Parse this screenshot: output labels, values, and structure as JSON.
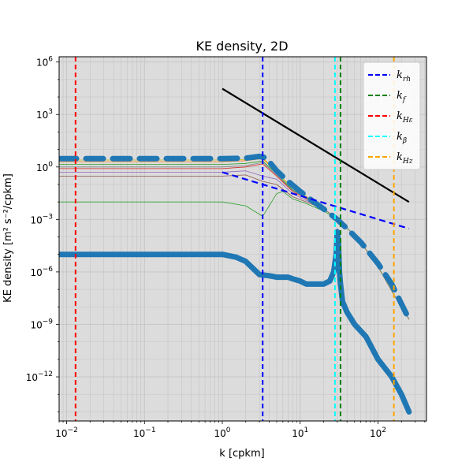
{
  "chart_data": {
    "type": "line",
    "title": "KE density, 2D",
    "xlabel": "k [cpkm]",
    "ylabel": "KE density [m² s⁻²/cpkm]",
    "xscale": "log",
    "yscale": "log",
    "xlim": [
      0.008,
      420
    ],
    "ylim": [
      3e-15,
      2000000.0
    ],
    "grid": true,
    "background_color": "#dcdcdc",
    "x_ticks": [
      {
        "value": 0.01,
        "base": "10",
        "exp": "−2"
      },
      {
        "value": 0.1,
        "base": "10",
        "exp": "−1"
      },
      {
        "value": 1,
        "base": "10",
        "exp": "0"
      },
      {
        "value": 10,
        "base": "10",
        "exp": "1"
      },
      {
        "value": 100,
        "base": "10",
        "exp": "2"
      }
    ],
    "y_ticks": [
      {
        "value": 1e-12,
        "base": "10",
        "exp": "−12"
      },
      {
        "value": 1e-09,
        "base": "10",
        "exp": "−9"
      },
      {
        "value": 1e-06,
        "base": "10",
        "exp": "−6"
      },
      {
        "value": 0.001,
        "base": "10",
        "exp": "−3"
      },
      {
        "value": 1,
        "base": "10",
        "exp": "0"
      },
      {
        "value": 1000.0,
        "base": "10",
        "exp": "3"
      },
      {
        "value": 1000000.0,
        "base": "10",
        "exp": "6"
      }
    ],
    "legend_position": "top-right",
    "legend": [
      {
        "main": "k",
        "sub": "rh",
        "color": "#0000ff"
      },
      {
        "main": "k",
        "sub": "f",
        "color": "#008000"
      },
      {
        "main": "k",
        "sub": "Hε",
        "color": "#ff0000"
      },
      {
        "main": "k",
        "sub": "β",
        "color": "#00ffff"
      },
      {
        "main": "k",
        "sub": "Hz",
        "color": "#ffa500"
      }
    ],
    "vlines": [
      {
        "x": 3.3,
        "color": "#0000ff"
      },
      {
        "x": 33,
        "color": "#008000"
      },
      {
        "x": 0.013,
        "color": "#ff0000"
      },
      {
        "x": 28,
        "color": "#00ffff"
      },
      {
        "x": 160,
        "color": "#ffa500"
      }
    ],
    "reference_lines": [
      {
        "color": "#000000",
        "style": "solid",
        "x": [
          1,
          250
        ],
        "y": [
          30000,
          0.01
        ]
      },
      {
        "color": "#0000ff",
        "style": "dashed",
        "x": [
          1,
          250
        ],
        "y": [
          0.5,
          0.0003
        ]
      }
    ],
    "series": [
      {
        "color": "#1f77b4",
        "width": 7,
        "style": "dashed",
        "x": [
          0.008,
          1,
          2,
          3,
          3.5,
          4,
          5,
          7,
          10,
          15,
          20,
          30,
          40,
          60,
          100,
          150,
          200,
          250
        ],
        "y": [
          3,
          3,
          3.2,
          4,
          3.5,
          2,
          0.6,
          0.15,
          0.04,
          0.01,
          0.004,
          0.001,
          0.0003,
          5e-05,
          3e-06,
          2e-07,
          1.5e-08,
          2e-09
        ]
      },
      {
        "color": "#1f77b4",
        "width": 7,
        "style": "solid",
        "x": [
          0.008,
          0.5,
          1,
          1.5,
          2,
          3,
          4,
          5,
          7,
          8,
          10,
          12,
          15,
          20,
          24,
          27,
          29,
          30,
          31,
          32,
          33,
          35,
          40,
          50,
          70,
          100,
          150,
          200,
          250
        ],
        "y": [
          1e-05,
          1e-05,
          1e-05,
          7e-06,
          4e-06,
          7e-07,
          6e-07,
          5e-07,
          5e-07,
          4e-07,
          3e-07,
          2e-07,
          2e-07,
          2e-07,
          3e-07,
          1e-06,
          1e-05,
          0.0002,
          5e-05,
          1e-06,
          2e-07,
          2e-08,
          5e-09,
          1e-09,
          2e-10,
          1e-11,
          1e-12,
          1e-13,
          1e-14
        ]
      },
      {
        "color": "#ff7f0e",
        "width": 0.8,
        "style": "solid",
        "x": [
          0.008,
          1,
          2,
          3.3,
          5,
          8,
          12,
          20,
          33,
          60,
          100,
          160,
          250
        ],
        "y": [
          2,
          2,
          2.3,
          3,
          0.5,
          0.06,
          0.02,
          0.004,
          0.0008,
          5e-05,
          2e-06,
          5e-08,
          2e-09
        ]
      },
      {
        "color": "#2ca02c",
        "width": 0.8,
        "style": "solid",
        "x": [
          0.008,
          1,
          2,
          3.3,
          5,
          8,
          12,
          20,
          33,
          60,
          100,
          160,
          250
        ],
        "y": [
          1.4,
          1.4,
          1.6,
          2.2,
          0.4,
          0.05,
          0.018,
          0.004,
          0.0008,
          5e-05,
          2e-06,
          5e-08,
          2e-09
        ]
      },
      {
        "color": "#d62728",
        "width": 0.8,
        "style": "solid",
        "x": [
          0.008,
          1,
          2,
          3.3,
          5,
          8,
          12,
          20,
          33,
          60,
          100,
          160,
          250
        ],
        "y": [
          0.8,
          0.8,
          1,
          1.5,
          0.3,
          0.04,
          0.015,
          0.004,
          0.0008,
          5e-05,
          2e-06,
          5e-08,
          2e-09
        ]
      },
      {
        "color": "#9467bd",
        "width": 0.8,
        "style": "solid",
        "x": [
          0.008,
          1,
          2,
          3.3,
          5,
          8,
          12,
          20,
          33,
          60,
          100,
          160,
          250
        ],
        "y": [
          0.5,
          0.5,
          0.6,
          0.3,
          0.2,
          0.03,
          0.012,
          0.004,
          0.0008,
          5e-05,
          2e-06,
          5e-08,
          2e-09
        ]
      },
      {
        "color": "#8c564b",
        "width": 0.8,
        "style": "solid",
        "x": [
          0.008,
          1,
          2,
          3.3,
          5,
          8,
          12,
          20,
          33,
          60,
          100,
          160,
          250
        ],
        "y": [
          0.3,
          0.3,
          0.35,
          0.15,
          0.1,
          0.02,
          0.01,
          0.004,
          0.0008,
          5e-05,
          2e-06,
          5e-08,
          2e-09
        ]
      },
      {
        "color": "#2ca02c",
        "width": 0.8,
        "style": "solid",
        "x": [
          0.008,
          1,
          2,
          3.3,
          5,
          6,
          8,
          12,
          20,
          33,
          60,
          100,
          160,
          250
        ],
        "y": [
          0.01,
          0.01,
          0.006,
          0.0015,
          0.03,
          0.04,
          0.015,
          0.008,
          0.003,
          0.0008,
          5e-05,
          2e-06,
          5e-08,
          2e-09
        ]
      },
      {
        "color": "#bcbd22",
        "width": 0.8,
        "style": "solid",
        "x": [
          0.008,
          1,
          2,
          3.3,
          5,
          8,
          12,
          20,
          33,
          60,
          100,
          160,
          250
        ],
        "y": [
          2.5,
          2.5,
          2.7,
          3.5,
          0.5,
          0.06,
          0.02,
          0.004,
          0.0008,
          5e-05,
          2e-06,
          5e-08,
          2e-09
        ]
      },
      {
        "color": "#7f7f7f",
        "width": 0.8,
        "style": "solid",
        "x": [
          0.008,
          1,
          2,
          3.3,
          5,
          8,
          12,
          20,
          33,
          60,
          100,
          160,
          250
        ],
        "y": [
          1,
          1,
          1.2,
          1.8,
          0.35,
          0.045,
          0.017,
          0.004,
          0.0008,
          5e-05,
          2e-06,
          5e-08,
          2e-09
        ]
      }
    ]
  }
}
